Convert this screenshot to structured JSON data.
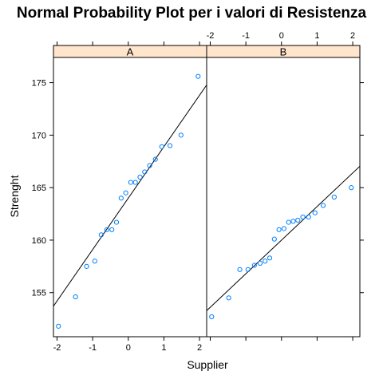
{
  "chart_data": {
    "type": "scatter",
    "title": "Normal Probability Plot per i valori di Resistenza",
    "xlabel": "Supplier",
    "ylabel": "Strenght",
    "xlim": [
      -2.1,
      2.2
    ],
    "ylim": [
      150.8,
      177.4
    ],
    "x_ticks": [
      -2,
      -1,
      0,
      1,
      2
    ],
    "x_tick_labels": [
      "-2",
      "-1",
      "0",
      "1",
      "2"
    ],
    "y_ticks": [
      155,
      160,
      165,
      170,
      175
    ],
    "y_tick_labels": [
      "155",
      "160",
      "165",
      "170",
      "175"
    ],
    "grid": false,
    "point_color": "#0080ff",
    "line_color": "#000000",
    "strip_color": "#ffe5cc",
    "panels": [
      {
        "name": "A",
        "line": {
          "intercept": 164.0,
          "slope": 4.9
        },
        "points": [
          {
            "x": -1.96,
            "y": 151.8
          },
          {
            "x": -1.48,
            "y": 154.6
          },
          {
            "x": -1.17,
            "y": 157.5
          },
          {
            "x": -0.94,
            "y": 158.0
          },
          {
            "x": -0.76,
            "y": 160.5
          },
          {
            "x": -0.6,
            "y": 161.0
          },
          {
            "x": -0.46,
            "y": 161.0
          },
          {
            "x": -0.33,
            "y": 161.7
          },
          {
            "x": -0.2,
            "y": 164.0
          },
          {
            "x": -0.07,
            "y": 164.5
          },
          {
            "x": 0.07,
            "y": 165.5
          },
          {
            "x": 0.2,
            "y": 165.5
          },
          {
            "x": 0.33,
            "y": 166.0
          },
          {
            "x": 0.46,
            "y": 166.5
          },
          {
            "x": 0.6,
            "y": 167.1
          },
          {
            "x": 0.76,
            "y": 167.7
          },
          {
            "x": 0.94,
            "y": 168.9
          },
          {
            "x": 1.17,
            "y": 169.0
          },
          {
            "x": 1.48,
            "y": 170.0
          },
          {
            "x": 1.96,
            "y": 175.6
          }
        ]
      },
      {
        "name": "B",
        "line": {
          "intercept": 160.0,
          "slope": 3.2
        },
        "points": [
          {
            "x": -1.96,
            "y": 152.7
          },
          {
            "x": -1.48,
            "y": 154.5
          },
          {
            "x": -1.17,
            "y": 157.2
          },
          {
            "x": -0.94,
            "y": 157.2
          },
          {
            "x": -0.76,
            "y": 157.6
          },
          {
            "x": -0.6,
            "y": 157.8
          },
          {
            "x": -0.46,
            "y": 158.0
          },
          {
            "x": -0.33,
            "y": 158.3
          },
          {
            "x": -0.2,
            "y": 160.1
          },
          {
            "x": -0.07,
            "y": 161.0
          },
          {
            "x": 0.07,
            "y": 161.1
          },
          {
            "x": 0.2,
            "y": 161.7
          },
          {
            "x": 0.33,
            "y": 161.8
          },
          {
            "x": 0.46,
            "y": 161.9
          },
          {
            "x": 0.6,
            "y": 162.2
          },
          {
            "x": 0.76,
            "y": 162.2
          },
          {
            "x": 0.94,
            "y": 162.6
          },
          {
            "x": 1.17,
            "y": 163.3
          },
          {
            "x": 1.48,
            "y": 164.1
          },
          {
            "x": 1.96,
            "y": 165.0
          }
        ]
      }
    ]
  }
}
